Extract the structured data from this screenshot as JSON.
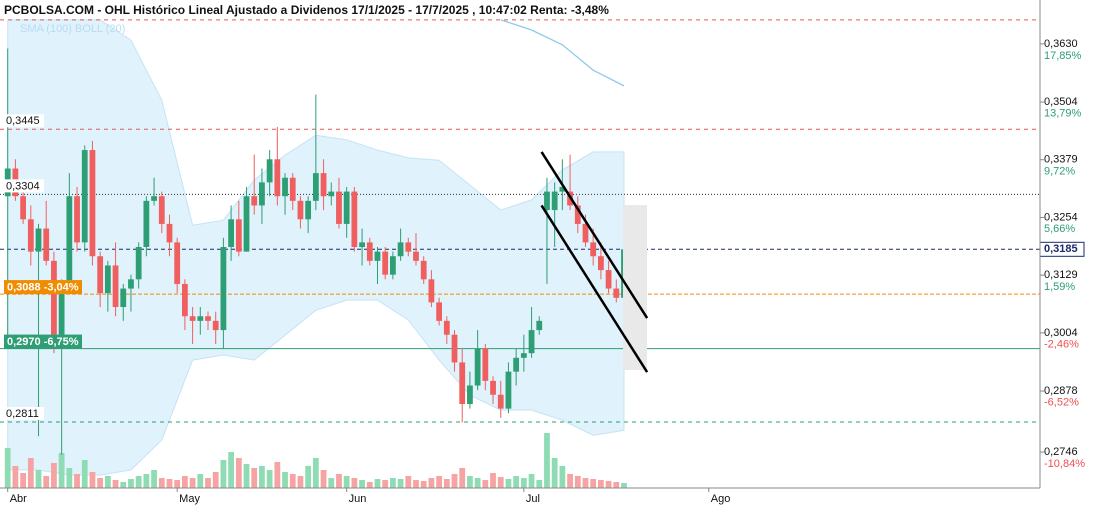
{
  "chart_data": {
    "type": "candlestick",
    "title": "PCBOLSA.COM - OHL Histórico Lineal Ajustado a Dividenos 17/1/2025 - 17/7/2025 , 10:47:02 Renta: -3,48%",
    "legend": "SMA (100) BOLL (20)",
    "up_color": "#2e9e74",
    "down_color": "#ef5f5f",
    "volume_up_color": "#8fdcb4",
    "volume_down_color": "#f5a3a3",
    "x": [
      0,
      1,
      2,
      3,
      4,
      5,
      6,
      7,
      8,
      9,
      10,
      11,
      12,
      13,
      14,
      15,
      16,
      17,
      18,
      19,
      20,
      21,
      22,
      23,
      24,
      25,
      26,
      27,
      28,
      29,
      30,
      31,
      32,
      33,
      34,
      35,
      36,
      37,
      38,
      39,
      40,
      41,
      42,
      43,
      44,
      45,
      46,
      47,
      48,
      49,
      50,
      51,
      52,
      53,
      54,
      55,
      56,
      57,
      58,
      59,
      60,
      61,
      62,
      63,
      64,
      65,
      66,
      67,
      68,
      69,
      70,
      71,
      72,
      73,
      74,
      75,
      76,
      77,
      78,
      79,
      80
    ],
    "open": [
      0.33,
      0.336,
      0.33,
      0.325,
      0.318,
      0.323,
      0.316,
      0.3,
      0.311,
      0.33,
      0.32,
      0.34,
      0.317,
      0.309,
      0.315,
      0.306,
      0.31,
      0.312,
      0.319,
      0.329,
      0.33,
      0.324,
      0.32,
      0.311,
      0.304,
      0.303,
      0.304,
      0.303,
      0.301,
      0.319,
      0.325,
      0.318,
      0.33,
      0.328,
      0.333,
      0.338,
      0.33,
      0.334,
      0.329,
      0.325,
      0.329,
      0.335,
      0.33,
      0.331,
      0.324,
      0.331,
      0.319,
      0.32,
      0.316,
      0.318,
      0.313,
      0.317,
      0.32,
      0.318,
      0.316,
      0.312,
      0.307,
      0.303,
      0.3,
      0.294,
      0.285,
      0.289,
      0.297,
      0.29,
      0.287,
      0.284,
      0.292,
      0.295,
      0.296,
      0.301,
      0.327,
      0.327,
      0.331,
      0.331,
      0.328,
      0.324,
      0.32,
      0.317,
      0.314,
      0.31,
      0.308
    ],
    "high": [
      0.362,
      0.338,
      0.332,
      0.328,
      0.324,
      0.329,
      0.318,
      0.312,
      0.335,
      0.332,
      0.341,
      0.342,
      0.318,
      0.316,
      0.32,
      0.311,
      0.313,
      0.32,
      0.33,
      0.334,
      0.331,
      0.326,
      0.321,
      0.312,
      0.306,
      0.306,
      0.305,
      0.305,
      0.321,
      0.328,
      0.329,
      0.332,
      0.339,
      0.336,
      0.34,
      0.345,
      0.335,
      0.335,
      0.33,
      0.33,
      0.352,
      0.338,
      0.333,
      0.334,
      0.332,
      0.332,
      0.323,
      0.321,
      0.319,
      0.319,
      0.318,
      0.323,
      0.321,
      0.322,
      0.317,
      0.314,
      0.308,
      0.304,
      0.301,
      0.297,
      0.292,
      0.301,
      0.298,
      0.291,
      0.29,
      0.294,
      0.297,
      0.3,
      0.306,
      0.304,
      0.334,
      0.333,
      0.338,
      0.339,
      0.33,
      0.326,
      0.323,
      0.32,
      0.316,
      0.312,
      0.32
    ],
    "low": [
      0.3,
      0.329,
      0.324,
      0.315,
      0.278,
      0.315,
      0.296,
      0.274,
      0.309,
      0.318,
      0.318,
      0.315,
      0.306,
      0.305,
      0.304,
      0.303,
      0.305,
      0.31,
      0.317,
      0.328,
      0.322,
      0.317,
      0.309,
      0.301,
      0.298,
      0.3,
      0.301,
      0.298,
      0.297,
      0.316,
      0.317,
      0.318,
      0.326,
      0.324,
      0.33,
      0.328,
      0.326,
      0.327,
      0.323,
      0.322,
      0.327,
      0.327,
      0.328,
      0.323,
      0.321,
      0.318,
      0.315,
      0.315,
      0.311,
      0.312,
      0.312,
      0.316,
      0.317,
      0.315,
      0.311,
      0.306,
      0.302,
      0.298,
      0.292,
      0.281,
      0.284,
      0.288,
      0.288,
      0.285,
      0.282,
      0.283,
      0.289,
      0.292,
      0.295,
      0.3,
      0.311,
      0.319,
      0.327,
      0.327,
      0.322,
      0.319,
      0.315,
      0.312,
      0.309,
      0.307,
      0.307
    ],
    "close": [
      0.336,
      0.33,
      0.325,
      0.318,
      0.323,
      0.316,
      0.3,
      0.311,
      0.33,
      0.32,
      0.34,
      0.317,
      0.309,
      0.315,
      0.306,
      0.31,
      0.312,
      0.319,
      0.329,
      0.33,
      0.324,
      0.32,
      0.311,
      0.304,
      0.303,
      0.304,
      0.303,
      0.301,
      0.319,
      0.325,
      0.318,
      0.33,
      0.328,
      0.333,
      0.338,
      0.33,
      0.334,
      0.329,
      0.325,
      0.329,
      0.335,
      0.33,
      0.331,
      0.324,
      0.331,
      0.319,
      0.32,
      0.316,
      0.318,
      0.313,
      0.317,
      0.32,
      0.318,
      0.316,
      0.312,
      0.307,
      0.303,
      0.3,
      0.294,
      0.285,
      0.289,
      0.297,
      0.29,
      0.287,
      0.284,
      0.292,
      0.295,
      0.296,
      0.301,
      0.303,
      0.331,
      0.331,
      0.332,
      0.328,
      0.324,
      0.32,
      0.317,
      0.314,
      0.31,
      0.308,
      0.3185
    ],
    "volume": [
      40,
      22,
      15,
      30,
      18,
      12,
      25,
      35,
      20,
      14,
      28,
      16,
      10,
      12,
      8,
      6,
      9,
      12,
      14,
      18,
      10,
      9,
      8,
      12,
      10,
      14,
      10,
      16,
      28,
      36,
      30,
      24,
      20,
      22,
      18,
      26,
      16,
      14,
      12,
      22,
      30,
      18,
      10,
      14,
      12,
      10,
      8,
      6,
      9,
      8,
      10,
      9,
      12,
      8,
      7,
      10,
      12,
      9,
      14,
      20,
      12,
      10,
      8,
      15,
      11,
      9,
      12,
      10,
      14,
      8,
      55,
      30,
      22,
      14,
      12,
      10,
      9,
      8,
      7,
      6,
      5
    ],
    "volume_ylim": [
      0,
      100
    ],
    "xlim": [
      -1,
      134
    ],
    "xticks": [
      {
        "value": 0,
        "label": "Abr"
      },
      {
        "value": 22,
        "label": "May"
      },
      {
        "value": 44,
        "label": "Jun"
      },
      {
        "value": 67,
        "label": "Jul"
      },
      {
        "value": 91,
        "label": "Ago"
      }
    ],
    "ylim": [
      0.2668,
      0.3725
    ],
    "yticks": [
      {
        "value": 0.363,
        "label": "0,3630"
      },
      {
        "value": 0.3504,
        "label": "0,3504"
      },
      {
        "value": 0.3379,
        "label": "0,3379"
      },
      {
        "value": 0.3254,
        "label": "0,3254"
      },
      {
        "value": 0.3129,
        "label": "0,3129"
      },
      {
        "value": 0.3004,
        "label": "0,3004"
      },
      {
        "value": 0.2878,
        "label": "0,2878"
      },
      {
        "value": 0.2746,
        "label": "0,2746"
      }
    ],
    "y2lim": [
      -13.38,
      20.94
    ],
    "y2ticks": [
      {
        "value": 17.85,
        "label": "17,85%"
      },
      {
        "value": 13.79,
        "label": "13,79%"
      },
      {
        "value": 9.72,
        "label": "9,72%"
      },
      {
        "value": 5.66,
        "label": "5,66%"
      },
      {
        "value": 1.59,
        "label": "1,59%"
      },
      {
        "value": -2.46,
        "label": "-2,46%"
      },
      {
        "value": -6.52,
        "label": "-6,52%"
      },
      {
        "value": -10.84,
        "label": "-10,84%"
      }
    ],
    "y2_up_color": "#2e9e74",
    "y2_down_color": "#ef4f4f",
    "bollinger": {
      "color": "#d6edfa",
      "x": [
        0,
        4,
        8,
        12,
        16,
        20,
        24,
        28,
        32,
        36,
        40,
        44,
        48,
        52,
        56,
        60,
        64,
        68,
        72,
        76,
        80
      ],
      "upper": [
        0.3682,
        0.3682,
        0.3682,
        0.3682,
        0.3638,
        0.3508,
        0.3237,
        0.3248,
        0.3335,
        0.3389,
        0.3432,
        0.3422,
        0.34,
        0.3383,
        0.3378,
        0.3324,
        0.327,
        0.3292,
        0.3357,
        0.3396,
        0.3396
      ],
      "lower": [
        0.2707,
        0.2707,
        0.2696,
        0.2696,
        0.2707,
        0.2772,
        0.2945,
        0.2956,
        0.2945,
        0.2999,
        0.3053,
        0.3075,
        0.3075,
        0.3032,
        0.2945,
        0.2869,
        0.2837,
        0.2837,
        0.2815,
        0.2782,
        0.2793
      ]
    },
    "sma": {
      "color": "#8ecbec",
      "x": [
        64,
        68,
        72,
        76,
        80
      ],
      "values": [
        0.3682,
        0.366,
        0.3628,
        0.3573,
        0.3539
      ]
    },
    "hlines": [
      {
        "value": 0.3682,
        "color": "#e05a5a",
        "dash": "4 4"
      },
      {
        "value": 0.3445,
        "color": "#e05a5a",
        "dash": "4 4",
        "label": "0,3445"
      },
      {
        "value": 0.3304,
        "color": "#333333",
        "dash": "1 2",
        "label": "0,3304"
      },
      {
        "value": 0.3185,
        "color": "#1a2a6c",
        "dash": "4 3",
        "right_label": "0,3185"
      },
      {
        "value": 0.3088,
        "color": "#f08c00",
        "dash": "4 2",
        "box_label": "0,3088 -3,04%"
      },
      {
        "value": 0.297,
        "color": "#2e9e74",
        "dash": "none",
        "box_label": "0,2970 -6,75%"
      },
      {
        "value": 0.2811,
        "color": "#2e9e74",
        "dash": "4 4",
        "label": "0,2811"
      }
    ],
    "trendlines": [
      {
        "x": [
          69.3,
          83.0
        ],
        "y": [
          0.3396,
          0.3036
        ]
      },
      {
        "x": [
          69.3,
          83.0
        ],
        "y": [
          0.328,
          0.2919
        ]
      }
    ]
  }
}
